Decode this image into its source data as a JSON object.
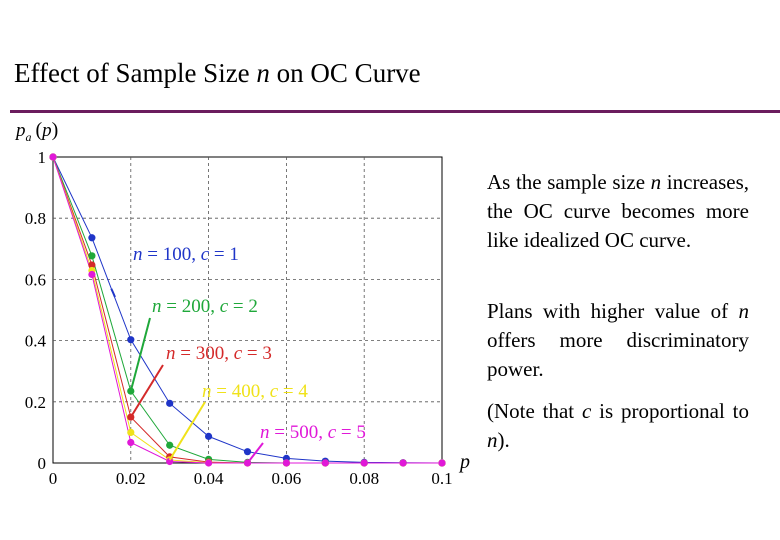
{
  "page": {
    "title_main": "Effect of Sample Size ",
    "title_var": "n",
    "title_end": " on OC Curve"
  },
  "text": {
    "p1_a": "As the sample size ",
    "p1_n": "n",
    "p1_b": " increases, the OC curve becomes more like idealized OC curve.",
    "p2_a": "Plans with higher value of ",
    "p2_n": "n",
    "p2_b": " offers more discriminatory power.",
    "p3_a": "(Note that ",
    "p3_c": "c",
    "p3_b": " is proportional to ",
    "p3_n": "n",
    "p3_end": ")."
  },
  "chart_data": {
    "type": "line",
    "ylabel": "pa(p)",
    "xlabel": "p",
    "xlim": [
      0,
      0.1
    ],
    "ylim": [
      0,
      1
    ],
    "xticks": [
      0,
      0.02,
      0.04,
      0.06,
      0.08,
      0.1
    ],
    "xtick_labels": [
      "0",
      "0.02",
      "0.04",
      "0.06",
      "0.08",
      "0.1"
    ],
    "yticks": [
      0,
      0.2,
      0.4,
      0.6,
      0.8,
      1
    ],
    "ytick_labels": [
      "0",
      "0.2",
      "0.4",
      "0.6",
      "0.8",
      "1"
    ],
    "grid": true,
    "x": [
      0,
      0.01,
      0.02,
      0.03,
      0.04,
      0.05,
      0.06,
      0.07,
      0.08,
      0.09,
      0.1
    ],
    "series": [
      {
        "name": "n = 100, c = 1",
        "color": "#1f35c8",
        "values": [
          1,
          0.736,
          0.403,
          0.195,
          0.087,
          0.037,
          0.015,
          0.006,
          0.002,
          0.001,
          0.0
        ]
      },
      {
        "name": "n = 200, c = 2",
        "color": "#1fa83a",
        "values": [
          1,
          0.677,
          0.235,
          0.058,
          0.012,
          0.002,
          0.0,
          0.0,
          0.0,
          0.0,
          0.0
        ]
      },
      {
        "name": "n = 300, c = 3",
        "color": "#d42a2a",
        "values": [
          1,
          0.647,
          0.15,
          0.02,
          0.003,
          0.0,
          0.0,
          0.0,
          0.0,
          0.0,
          0.0
        ]
      },
      {
        "name": "n = 400, c = 4",
        "color": "#f0e21a",
        "values": [
          1,
          0.629,
          0.1,
          0.01,
          0.001,
          0.0,
          0.0,
          0.0,
          0.0,
          0.0,
          0.0
        ]
      },
      {
        "name": "n = 500, c = 5",
        "color": "#e018d8",
        "values": [
          1,
          0.616,
          0.067,
          0.005,
          0.0,
          0.0,
          0.0,
          0.0,
          0.0,
          0.0,
          0.0
        ]
      }
    ],
    "annotations": [
      {
        "label_n": "n",
        "label_nv": " = 100, ",
        "label_c": "c",
        "label_cv": " = 1",
        "color": "#1f35c8",
        "target_x": 0.015
      },
      {
        "label_n": "n",
        "label_nv": " = 200, ",
        "label_c": "c",
        "label_cv": " = 2",
        "color": "#1fa83a",
        "target_x": 0.02
      },
      {
        "label_n": "n",
        "label_nv": " = 300, ",
        "label_c": "c",
        "label_cv": " = 3",
        "color": "#d42a2a",
        "target_x": 0.02
      },
      {
        "label_n": "n",
        "label_nv": " = 400, ",
        "label_c": "c",
        "label_cv": " = 4",
        "color": "#f0e21a",
        "target_x": 0.03
      },
      {
        "label_n": "n",
        "label_nv": " = 500, ",
        "label_c": "c",
        "label_cv": " = 5",
        "color": "#e018d8",
        "target_x": 0.05
      }
    ]
  }
}
